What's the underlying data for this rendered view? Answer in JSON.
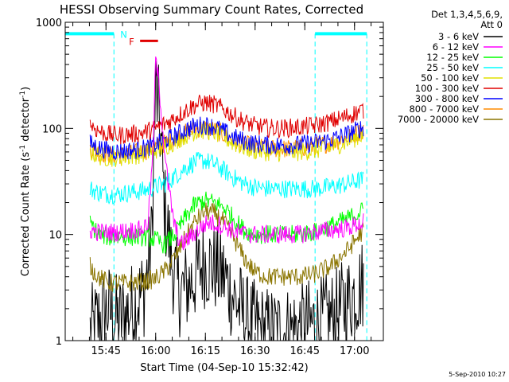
{
  "chart_data": {
    "type": "line",
    "title": "HESSI Observing Summary Count Rates, Corrected",
    "xlabel": "Start Time (04-Sep-10 15:32:42)",
    "ylabel": "Corrected Count Rate (s",
    "ylabel_sup1": "-1",
    "ylabel_mid": " detector",
    "ylabel_sup2": "-1",
    "ylabel_end": ")",
    "yscale": "log",
    "xlim_minutes": [
      0,
      96
    ],
    "ylim": [
      1,
      1000
    ],
    "x_ticks": [
      {
        "label": "15:45",
        "minute": 12.3
      },
      {
        "label": "16:00",
        "minute": 27.3
      },
      {
        "label": "16:15",
        "minute": 42.3
      },
      {
        "label": "16:30",
        "minute": 57.3
      },
      {
        "label": "16:45",
        "minute": 72.3
      },
      {
        "label": "17:00",
        "minute": 87.3
      }
    ],
    "y_ticks": [
      {
        "label": "1",
        "value": 1
      },
      {
        "label": "10",
        "value": 10
      },
      {
        "label": "100",
        "value": 100
      },
      {
        "label": "1000",
        "value": 1000
      }
    ],
    "legend_header": [
      "Det 1,3,4,5,6,9,",
      "Att 0"
    ],
    "legend_placement": "right",
    "annotations": {
      "night_label": "N",
      "flare_label": "F",
      "night_color": "#00ffff",
      "flare_color": "#e00000",
      "night_top_value": 780,
      "night_intervals": [
        [
          0,
          14.7
        ],
        [
          75.4,
          91
        ]
      ],
      "night_boundaries": [
        14.7,
        75.4,
        91
      ],
      "flare_interval": [
        22.6,
        28
      ]
    },
    "series": [
      {
        "name": "3 - 6 keV",
        "color": "#000000",
        "profile": "low",
        "values": [
          [
            7.5,
            1.2
          ],
          [
            10,
            1.5
          ],
          [
            13,
            2
          ],
          [
            16,
            1.5
          ],
          [
            20,
            2
          ],
          [
            24,
            3
          ],
          [
            26,
            8
          ],
          [
            27.3,
            230
          ],
          [
            28.5,
            120
          ],
          [
            30,
            18
          ],
          [
            32,
            6
          ],
          [
            34,
            3
          ],
          [
            36,
            3
          ],
          [
            39,
            4
          ],
          [
            42,
            5.5
          ],
          [
            45,
            5
          ],
          [
            48,
            4
          ],
          [
            51,
            2.5
          ],
          [
            55,
            1.5
          ],
          [
            60,
            1.2
          ],
          [
            66,
            1.2
          ],
          [
            70,
            1.3
          ],
          [
            74,
            1.4
          ],
          [
            78,
            1.5
          ],
          [
            82,
            1.8
          ],
          [
            86,
            2.5
          ],
          [
            90,
            3.5
          ]
        ]
      },
      {
        "name": "6 - 12 keV",
        "color": "#ff00ff",
        "values": [
          [
            7.5,
            11
          ],
          [
            10,
            10.5
          ],
          [
            13,
            10.5
          ],
          [
            16,
            10.5
          ],
          [
            20,
            11
          ],
          [
            23,
            11
          ],
          [
            25,
            13
          ],
          [
            26.5,
            60
          ],
          [
            27.3,
            450
          ],
          [
            28.3,
            260
          ],
          [
            29.5,
            90
          ],
          [
            31,
            30
          ],
          [
            33,
            12
          ],
          [
            35,
            8
          ],
          [
            37,
            9
          ],
          [
            40,
            11
          ],
          [
            43,
            13
          ],
          [
            46,
            12.5
          ],
          [
            49,
            11.5
          ],
          [
            52,
            10.5
          ],
          [
            56,
            10
          ],
          [
            60,
            10
          ],
          [
            65,
            10
          ],
          [
            70,
            10
          ],
          [
            75,
            10.5
          ],
          [
            80,
            11
          ],
          [
            85,
            11.5
          ],
          [
            90,
            13
          ]
        ]
      },
      {
        "name": "12 - 25 keV",
        "color": "#00ff00",
        "values": [
          [
            7.5,
            13
          ],
          [
            10,
            10
          ],
          [
            13,
            9.5
          ],
          [
            16,
            9.5
          ],
          [
            20,
            9.5
          ],
          [
            24,
            9.5
          ],
          [
            27,
            9
          ],
          [
            30,
            8
          ],
          [
            33,
            10
          ],
          [
            36,
            14
          ],
          [
            39,
            19
          ],
          [
            42,
            21
          ],
          [
            45,
            20
          ],
          [
            48,
            18
          ],
          [
            51,
            14
          ],
          [
            54,
            11
          ],
          [
            57,
            10
          ],
          [
            61,
            10
          ],
          [
            65,
            10
          ],
          [
            70,
            10
          ],
          [
            75,
            10.5
          ],
          [
            80,
            12
          ],
          [
            85,
            14
          ],
          [
            90,
            17
          ]
        ]
      },
      {
        "name": "25 - 50 keV",
        "color": "#00ffff",
        "values": [
          [
            7.5,
            27
          ],
          [
            10,
            25
          ],
          [
            13,
            24
          ],
          [
            16,
            24
          ],
          [
            20,
            25
          ],
          [
            24,
            26
          ],
          [
            27,
            28
          ],
          [
            30,
            30
          ],
          [
            33,
            35
          ],
          [
            36,
            42
          ],
          [
            39,
            48
          ],
          [
            42,
            50
          ],
          [
            45,
            46
          ],
          [
            48,
            40
          ],
          [
            51,
            34
          ],
          [
            54,
            30
          ],
          [
            57,
            28
          ],
          [
            61,
            27
          ],
          [
            65,
            27
          ],
          [
            70,
            27
          ],
          [
            75,
            27
          ],
          [
            80,
            28
          ],
          [
            85,
            30
          ],
          [
            90,
            33
          ]
        ]
      },
      {
        "name": "50 - 100 keV",
        "color": "#e0e000",
        "values": [
          [
            7.5,
            60
          ],
          [
            10,
            55
          ],
          [
            13,
            53
          ],
          [
            16,
            53
          ],
          [
            20,
            55
          ],
          [
            24,
            58
          ],
          [
            27,
            62
          ],
          [
            30,
            67
          ],
          [
            33,
            75
          ],
          [
            36,
            85
          ],
          [
            39,
            93
          ],
          [
            42,
            96
          ],
          [
            45,
            92
          ],
          [
            48,
            82
          ],
          [
            51,
            72
          ],
          [
            54,
            66
          ],
          [
            57,
            62
          ],
          [
            61,
            60
          ],
          [
            65,
            59
          ],
          [
            70,
            60
          ],
          [
            75,
            62
          ],
          [
            80,
            66
          ],
          [
            85,
            75
          ],
          [
            90,
            88
          ]
        ]
      },
      {
        "name": "100 - 300 keV",
        "color": "#e00000",
        "values": [
          [
            7.5,
            110
          ],
          [
            10,
            95
          ],
          [
            13,
            88
          ],
          [
            16,
            86
          ],
          [
            20,
            88
          ],
          [
            24,
            92
          ],
          [
            27,
            100
          ],
          [
            30,
            110
          ],
          [
            33,
            125
          ],
          [
            36,
            145
          ],
          [
            39,
            165
          ],
          [
            42,
            175
          ],
          [
            45,
            168
          ],
          [
            48,
            150
          ],
          [
            51,
            130
          ],
          [
            54,
            115
          ],
          [
            57,
            106
          ],
          [
            61,
            101
          ],
          [
            65,
            100
          ],
          [
            70,
            102
          ],
          [
            75,
            106
          ],
          [
            80,
            115
          ],
          [
            85,
            130
          ],
          [
            90,
            150
          ]
        ]
      },
      {
        "name": "300 - 800 keV",
        "color": "#0000ff",
        "values": [
          [
            7.5,
            72
          ],
          [
            10,
            66
          ],
          [
            13,
            62
          ],
          [
            16,
            61
          ],
          [
            20,
            62
          ],
          [
            24,
            65
          ],
          [
            27,
            70
          ],
          [
            30,
            76
          ],
          [
            33,
            85
          ],
          [
            36,
            96
          ],
          [
            39,
            105
          ],
          [
            42,
            108
          ],
          [
            45,
            104
          ],
          [
            48,
            93
          ],
          [
            51,
            82
          ],
          [
            54,
            76
          ],
          [
            57,
            72
          ],
          [
            61,
            70
          ],
          [
            65,
            69
          ],
          [
            70,
            70
          ],
          [
            75,
            73
          ],
          [
            80,
            78
          ],
          [
            85,
            88
          ],
          [
            90,
            103
          ]
        ]
      },
      {
        "name": "800 - 7000 keV",
        "color": "#ff8c00",
        "values": [
          [
            7.5,
            65
          ],
          [
            10,
            60
          ],
          [
            13,
            57
          ],
          [
            16,
            56
          ],
          [
            20,
            58
          ],
          [
            24,
            61
          ],
          [
            27,
            66
          ],
          [
            30,
            72
          ],
          [
            33,
            80
          ],
          [
            36,
            90
          ],
          [
            39,
            98
          ],
          [
            42,
            101
          ],
          [
            45,
            97
          ],
          [
            48,
            87
          ],
          [
            51,
            77
          ],
          [
            54,
            71
          ],
          [
            57,
            67
          ],
          [
            61,
            65
          ],
          [
            65,
            64
          ],
          [
            70,
            65
          ],
          [
            75,
            68
          ],
          [
            80,
            73
          ],
          [
            85,
            82
          ],
          [
            90,
            96
          ]
        ]
      },
      {
        "name": "7000 - 20000 keV",
        "color": "#8b7500",
        "values": [
          [
            7.5,
            5
          ],
          [
            10,
            4
          ],
          [
            13,
            3.5
          ],
          [
            16,
            3.5
          ],
          [
            20,
            3.5
          ],
          [
            24,
            3.6
          ],
          [
            27,
            3.8
          ],
          [
            30,
            4.5
          ],
          [
            33,
            6
          ],
          [
            36,
            9
          ],
          [
            39,
            13
          ],
          [
            42,
            16.5
          ],
          [
            45,
            16
          ],
          [
            48,
            13
          ],
          [
            51,
            9
          ],
          [
            54,
            6
          ],
          [
            57,
            4.5
          ],
          [
            61,
            4
          ],
          [
            65,
            4
          ],
          [
            70,
            4
          ],
          [
            75,
            4.2
          ],
          [
            80,
            5
          ],
          [
            85,
            7
          ],
          [
            90,
            11
          ]
        ]
      }
    ]
  },
  "footer": {
    "timestamp": "5-Sep-2010 10:27"
  }
}
